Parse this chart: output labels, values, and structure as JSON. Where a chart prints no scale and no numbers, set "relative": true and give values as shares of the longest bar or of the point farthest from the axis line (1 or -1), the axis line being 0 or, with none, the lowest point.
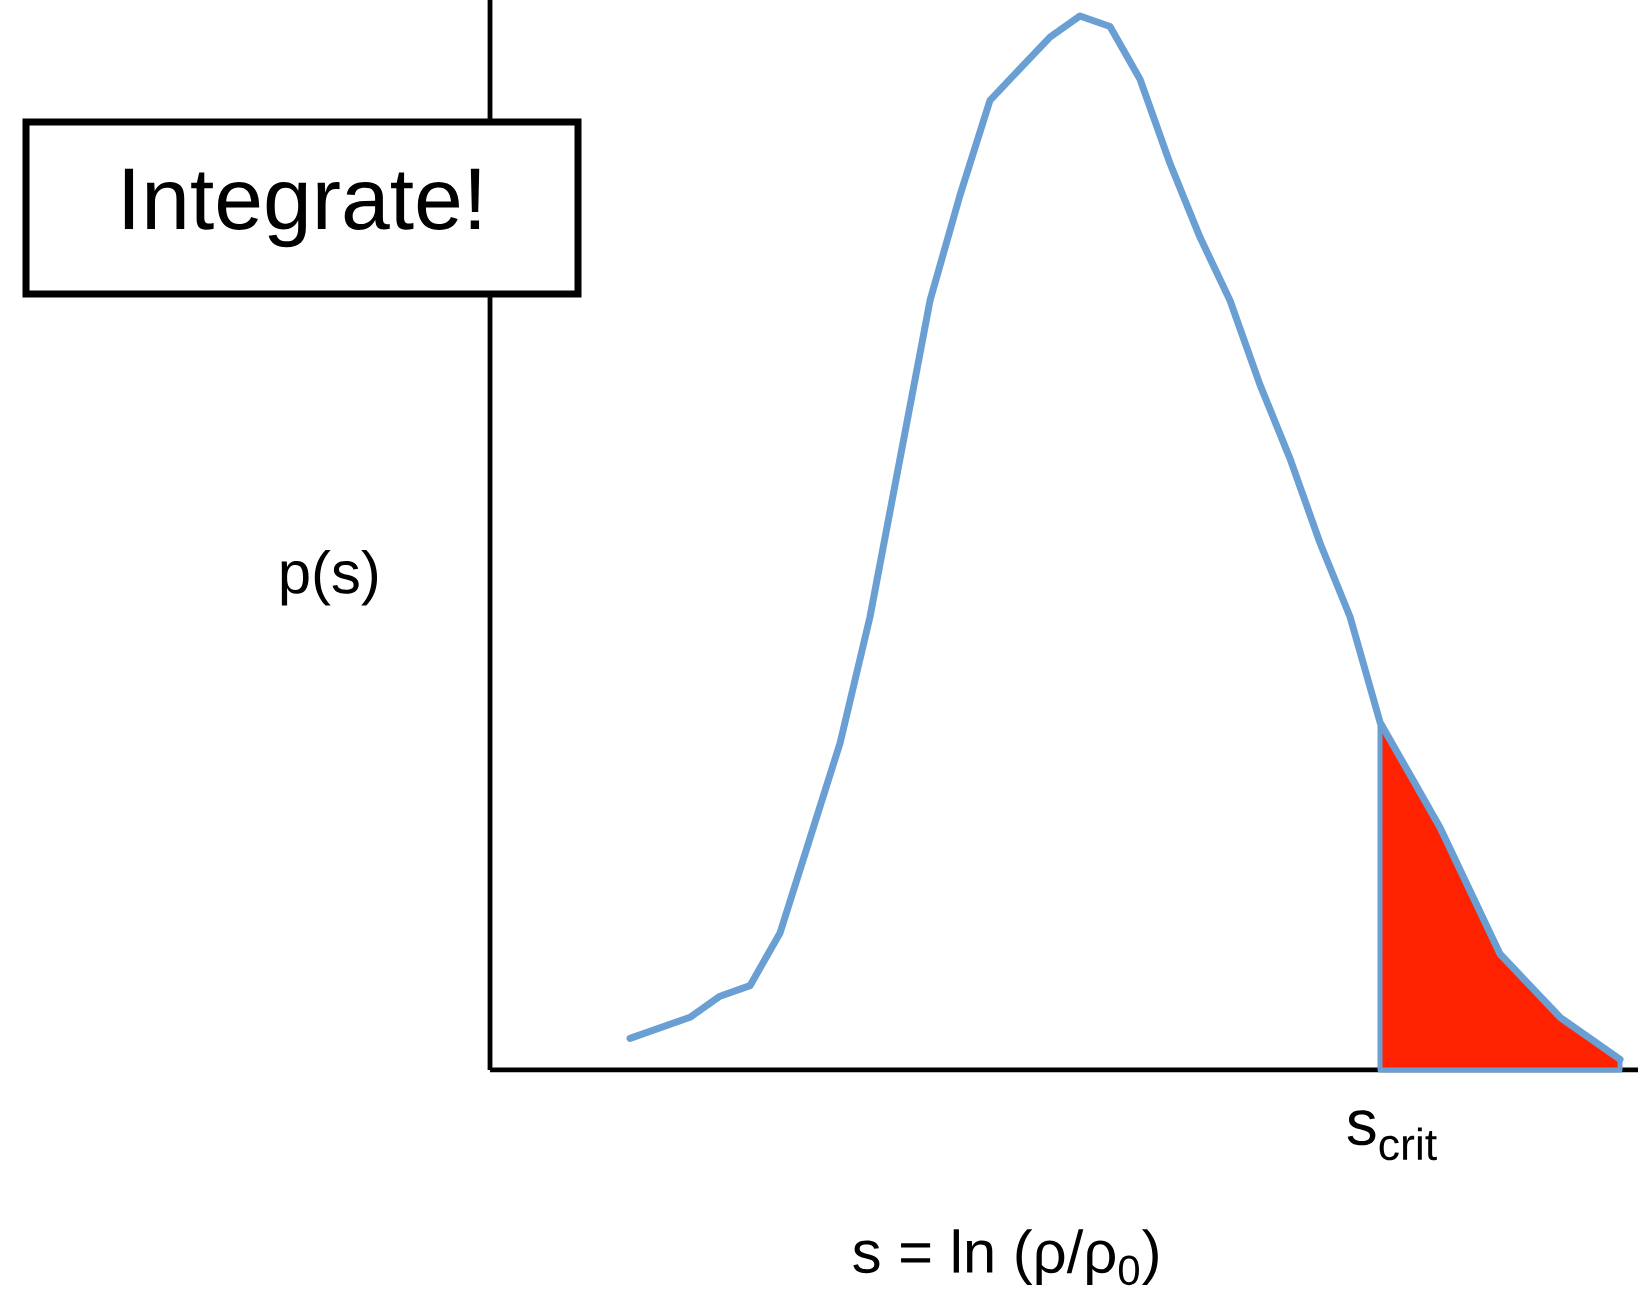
{
  "chart_data": {
    "type": "line",
    "relative": true,
    "xlabel": "s = ln (ρ/ρ$_{0}$)",
    "ylabel": "p(s)",
    "annotations": [
      "Integrate!",
      "s$_{crit}$"
    ],
    "categories": [
      null,
      null,
      null,
      null,
      null,
      null,
      null,
      null,
      null,
      null,
      null,
      null,
      null,
      null,
      null,
      null,
      null,
      null,
      null,
      null,
      null,
      null,
      null,
      null,
      null,
      null,
      null,
      null,
      null,
      null,
      null,
      null,
      null,
      null
    ],
    "marker": "none",
    "series": [
      {
        "color": "#6a9fd4",
        "values": [
          0.03,
          0.04,
          0.05,
          0.07,
          0.08,
          0.13,
          0.22,
          0.31,
          0.43,
          0.58,
          0.73,
          0.83,
          0.92,
          0.95,
          0.98,
          1.0,
          0.99,
          0.94,
          0.86,
          0.79,
          0.73,
          0.65,
          0.58,
          0.5,
          0.43,
          0.33,
          0.28,
          0.23,
          0.17,
          0.11,
          0.08,
          0.05,
          0.03,
          0.01
        ]
      },
      {
        "type": "area",
        "color": "#ff2200",
        "values": [
          null,
          null,
          null,
          null,
          null,
          null,
          null,
          null,
          null,
          null,
          null,
          null,
          null,
          null,
          null,
          null,
          null,
          null,
          null,
          null,
          null,
          null,
          null,
          null,
          null,
          0.33,
          0.28,
          0.23,
          0.17,
          0.11,
          0.08,
          0.05,
          0.03,
          0.01
        ]
      }
    ]
  }
}
